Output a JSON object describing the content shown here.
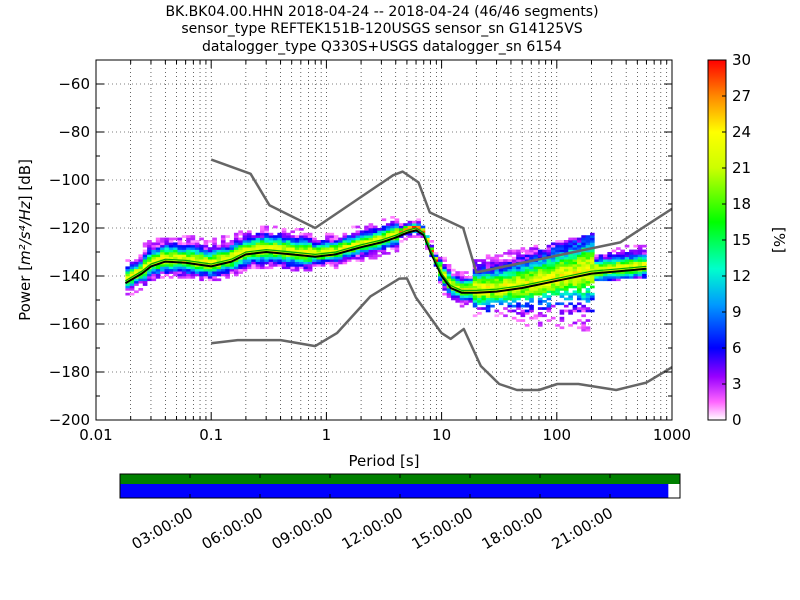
{
  "title_lines": [
    "BK.BK04.00.HHN   2018-04-24 -- 2018-04-24  (46/46 segments)",
    "sensor_type REFTEK151B-120USGS sensor_sn G14125VS",
    "datalogger_type Q330S+USGS datalogger_sn 6154"
  ],
  "xlabel": "Period [s]",
  "ylabel_main": "Power [",
  "ylabel_unit": "m²/s⁴/Hz",
  "ylabel_tail": "] [dB]",
  "colorbar_label": "[%]",
  "colors": {
    "nlnm_nhnm": "#666666",
    "mean_line": "#000000",
    "mode_line": "#00aa00",
    "coverage_data": "#0000ff",
    "coverage_gaps_bar": "#008000"
  },
  "chart_data": [
    {
      "type": "heatmap",
      "title": "BK.BK04.00.HHN   2018-04-24 -- 2018-04-24  (46/46 segments)",
      "xlabel": "Period [s]",
      "ylabel": "Power [m2/s4/Hz] [dB]",
      "xscale": "log",
      "xlim": [
        0.01,
        1000
      ],
      "ylim": [
        -200,
        -50
      ],
      "x_ticks": [
        0.01,
        0.1,
        1,
        10,
        100,
        1000
      ],
      "x_tick_labels": [
        "0.01",
        "0.1",
        "1",
        "10",
        "100",
        "1000"
      ],
      "y_ticks": [
        -200,
        -180,
        -160,
        -140,
        -120,
        -100,
        -80,
        -60
      ],
      "y_tick_labels": [
        "−200",
        "−180",
        "−160",
        "−140",
        "−120",
        "−100",
        "−80",
        "−60"
      ],
      "grid": true,
      "colorbar": {
        "min": 0,
        "max": 30,
        "ticks": [
          0,
          3,
          6,
          9,
          12,
          15,
          18,
          21,
          24,
          27,
          30
        ],
        "label": "[%]"
      },
      "series": [
        {
          "name": "",
          "kind": "noise-model-high",
          "x": [
            0.1,
            0.22,
            0.32,
            0.8,
            3.8,
            4.6,
            6.3,
            7.9,
            15.4,
            20,
            354.8,
            1000
          ],
          "y": [
            -91.5,
            -97.4,
            -110.5,
            -120,
            -98,
            -96.5,
            -101,
            -113.5,
            -120,
            -138.5,
            -126,
            -112
          ]
        },
        {
          "name": "",
          "kind": "noise-model-low",
          "x": [
            0.1,
            0.17,
            0.4,
            0.8,
            1.24,
            2.4,
            4.3,
            5,
            6,
            10,
            12,
            15.6,
            21.9,
            31.6,
            45,
            70,
            101,
            154,
            328,
            600,
            1000
          ],
          "y": [
            -168,
            -166.7,
            -166.7,
            -169.2,
            -163.7,
            -148.6,
            -141.1,
            -141,
            -149,
            -163.8,
            -166.2,
            -162.1,
            -177.5,
            -185,
            -187.5,
            -187.5,
            -185,
            -185,
            -187.5,
            -184.4,
            -178
          ]
        },
        {
          "name": "",
          "kind": "mean",
          "x": [
            0.018,
            0.025,
            0.03,
            0.04,
            0.06,
            0.1,
            0.15,
            0.2,
            0.3,
            0.5,
            0.8,
            1.2,
            2,
            3,
            4,
            5,
            6,
            7,
            8,
            10,
            12,
            15,
            20,
            30,
            50,
            100,
            200,
            600
          ],
          "y": [
            -143,
            -139,
            -136,
            -134,
            -134.5,
            -136,
            -134,
            -131,
            -130,
            -131,
            -132,
            -131,
            -128,
            -126,
            -124,
            -122,
            -121,
            -123,
            -130,
            -140,
            -145,
            -147,
            -147,
            -146.5,
            -145,
            -142,
            -139,
            -137
          ]
        },
        {
          "name": "",
          "kind": "mode",
          "x": [
            0.018,
            0.025,
            0.03,
            0.04,
            0.06,
            0.1,
            0.15,
            0.2,
            0.3,
            0.5,
            0.8,
            1.2,
            2,
            3,
            4,
            5,
            6,
            7,
            8,
            10,
            12,
            15,
            20,
            30,
            50,
            100,
            200,
            600
          ],
          "y": [
            -142,
            -138,
            -135,
            -133,
            -133.5,
            -135,
            -133,
            -130,
            -129,
            -130,
            -131,
            -130,
            -127,
            -125,
            -123,
            -121,
            -120,
            -122,
            -129,
            -139,
            -144,
            -146,
            -146,
            -145.5,
            -144,
            -141,
            -138,
            -136
          ]
        }
      ]
    },
    {
      "type": "bar",
      "title": "",
      "xlabel": "",
      "ylabel": "",
      "time_tick_labels": [
        "03:00:00",
        "06:00:00",
        "09:00:00",
        "12:00:00",
        "15:00:00",
        "18:00:00",
        "21:00:00"
      ],
      "time_range_hours": [
        0,
        24
      ],
      "series": [
        {
          "name": "",
          "kind": "gaps",
          "start_hour": 0,
          "end_hour": 24
        },
        {
          "name": "",
          "kind": "data",
          "start_hour": 0,
          "end_hour": 23.5
        }
      ]
    }
  ]
}
